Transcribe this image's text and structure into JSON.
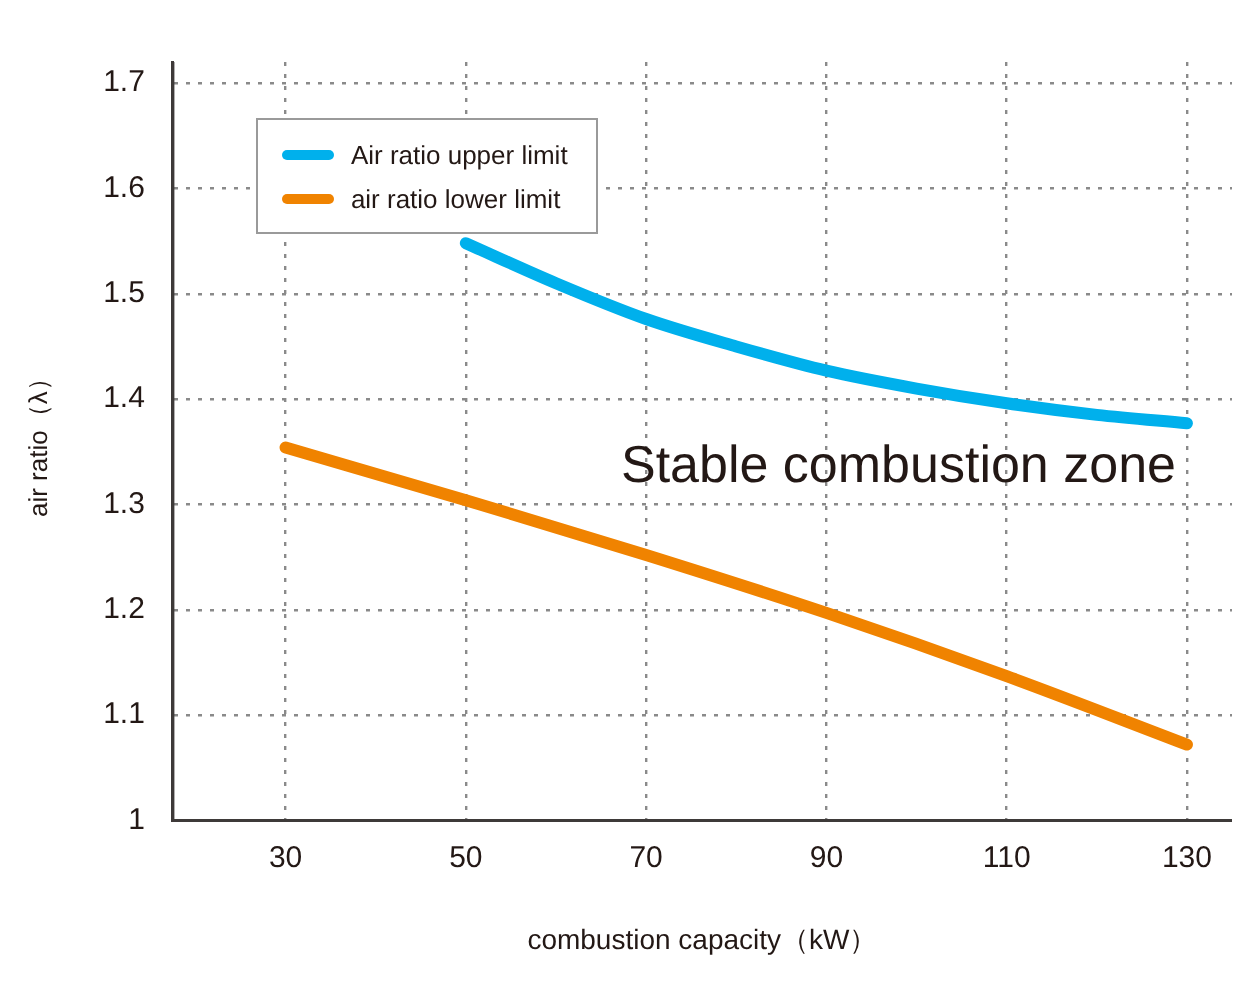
{
  "chart_data": {
    "type": "line",
    "xlabel": "combustion capacity（kW）",
    "ylabel": "air ratio（λ）",
    "xlim": [
      17.5,
      135
    ],
    "xticks": [
      30,
      50,
      70,
      90,
      110,
      130
    ],
    "ylim": [
      1,
      1.72
    ],
    "yticks": [
      1,
      1.1,
      1.2,
      1.3,
      1.4,
      1.5,
      1.6,
      1.7
    ],
    "grid": true,
    "legend": "top left",
    "marker": "none",
    "line_style": "solid",
    "annotations": [
      "Stable combustion zone"
    ],
    "series": [
      {
        "name": "Air ratio upper limit",
        "color": "#00b0ec",
        "x": [
          50,
          60,
          70,
          80,
          90,
          100,
          110,
          120,
          130
        ],
        "values": [
          1.548,
          1.51,
          1.476,
          1.45,
          1.427,
          1.41,
          1.396,
          1.385,
          1.377
        ]
      },
      {
        "name": "air ratio lower limit",
        "color": "#f08300",
        "x": [
          30,
          50,
          70,
          90,
          110,
          130
        ],
        "values": [
          1.354,
          1.304,
          1.252,
          1.197,
          1.137,
          1.072
        ]
      }
    ]
  }
}
